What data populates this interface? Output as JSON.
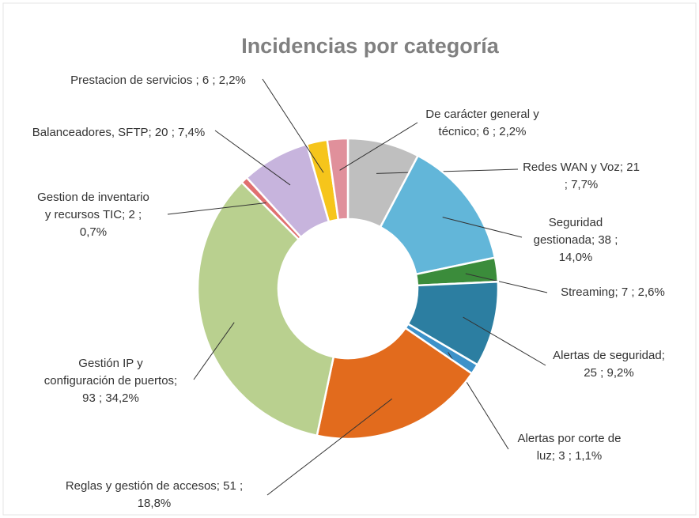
{
  "chart_data": {
    "type": "donut",
    "title": "Incidencias por categoría",
    "labels": [
      [
        "Redes WAN y Voz; 21",
        "; 7,7%"
      ],
      [
        "Seguridad",
        "gestionada; 38 ;",
        "14,0%"
      ],
      [
        "Streaming; 7 ; 2,6%"
      ],
      [
        "Alertas de seguridad;",
        "25 ; 9,2%"
      ],
      [
        "Alertas por corte de",
        "luz; 3 ; 1,1%"
      ],
      [
        "Reglas y gestión de accesos; 51 ;",
        "18,8%"
      ],
      [
        "Gestión IP y",
        "configuración de puertos;",
        "93 ; 34,2%"
      ],
      [
        "Gestion de inventario",
        "y recursos TIC; 2 ;",
        "0,7%"
      ],
      [
        "Balanceadores, SFTP; 20 ; 7,4%"
      ],
      [
        "Prestacion de servicios ; 6 ; 2,2%"
      ],
      [
        "De carácter general y",
        "técnico; 6 ; 2,2%"
      ]
    ],
    "values": [
      21,
      38,
      7,
      25,
      3,
      51,
      93,
      2,
      20,
      6,
      6
    ],
    "colors": [
      "#bfbfbf",
      "#62b6d9",
      "#3b8c3b",
      "#2c7ea1",
      "#3d92c9",
      "#e26b1d",
      "#b9d08f",
      "#e07070",
      "#c7b4dd",
      "#f6c51b",
      "#e0909b"
    ]
  }
}
